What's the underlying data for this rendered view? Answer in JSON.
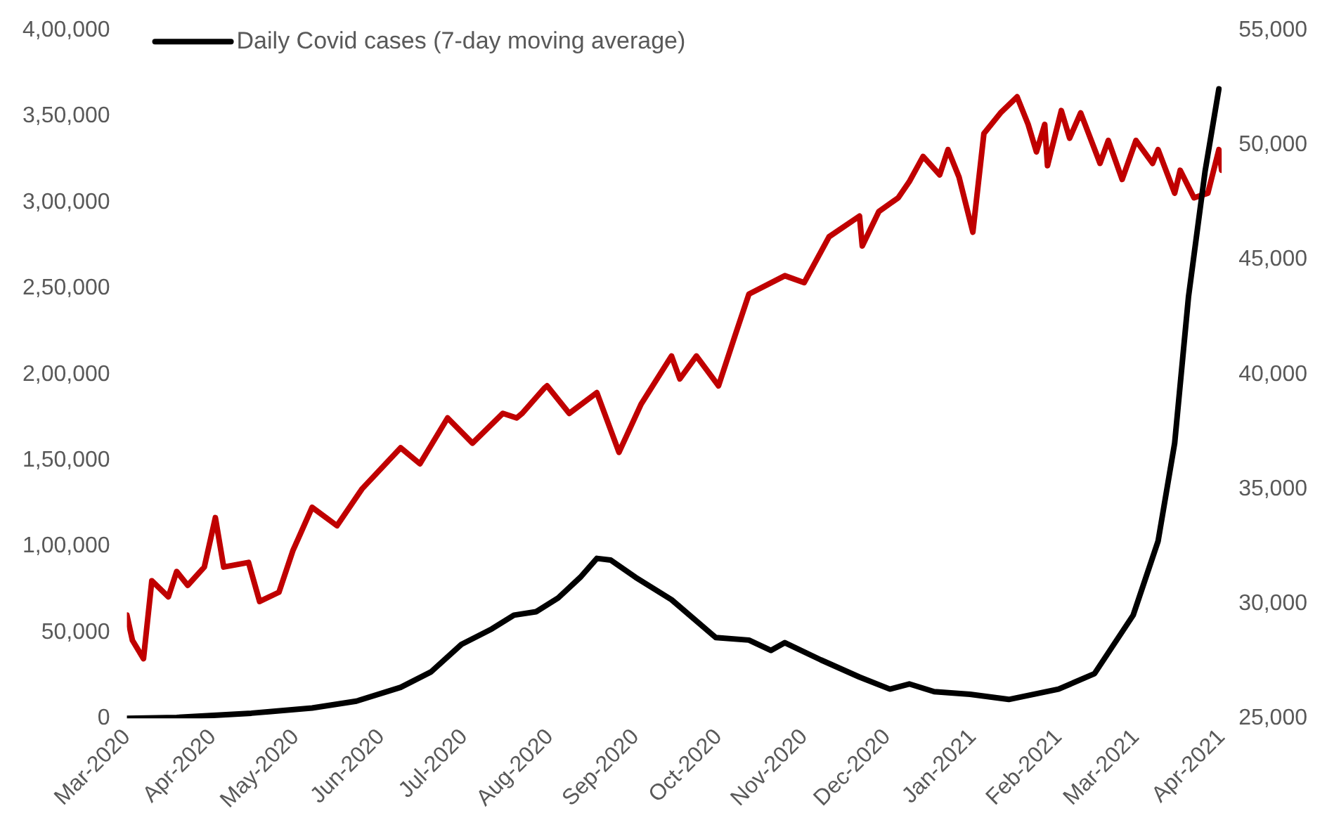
{
  "chart_data": {
    "type": "line",
    "legend": "top left",
    "grid": false,
    "marker": "none",
    "line_style": "solid",
    "xlim": [
      "2020-03-01",
      "2021-04-01"
    ],
    "xticks": [
      {
        "value": "2020-03-01",
        "label": "Mar-2020"
      },
      {
        "value": "2020-04-01",
        "label": "Apr-2020"
      },
      {
        "value": "2020-05-01",
        "label": "May-2020"
      },
      {
        "value": "2020-06-01",
        "label": "Jun-2020"
      },
      {
        "value": "2020-07-01",
        "label": "Jul-2020"
      },
      {
        "value": "2020-08-01",
        "label": "Aug-2020"
      },
      {
        "value": "2020-09-01",
        "label": "Sep-2020"
      },
      {
        "value": "2020-10-01",
        "label": "Oct-2020"
      },
      {
        "value": "2020-11-01",
        "label": "Nov-2020"
      },
      {
        "value": "2020-12-01",
        "label": "Dec-2020"
      },
      {
        "value": "2021-01-01",
        "label": "Jan-2021"
      },
      {
        "value": "2021-02-01",
        "label": "Feb-2021"
      },
      {
        "value": "2021-03-01",
        "label": "Mar-2021"
      },
      {
        "value": "2021-04-01",
        "label": "Apr-2021"
      }
    ],
    "ylim": [
      0,
      400000
    ],
    "yticks": [
      {
        "value": 0,
        "label": "0"
      },
      {
        "value": 50000,
        "label": "50,000"
      },
      {
        "value": 100000,
        "label": "1,00,000"
      },
      {
        "value": 150000,
        "label": "1,50,000"
      },
      {
        "value": 200000,
        "label": "2,00,000"
      },
      {
        "value": 250000,
        "label": "2,50,000"
      },
      {
        "value": 300000,
        "label": "3,00,000"
      },
      {
        "value": 350000,
        "label": "3,50,000"
      },
      {
        "value": 400000,
        "label": "4,00,000"
      }
    ],
    "y2lim": [
      25000,
      55000
    ],
    "y2ticks": [
      {
        "value": 25000,
        "label": "25,000"
      },
      {
        "value": 30000,
        "label": "30,000"
      },
      {
        "value": 35000,
        "label": "35,000"
      },
      {
        "value": 40000,
        "label": "40,000"
      },
      {
        "value": 45000,
        "label": "45,000"
      },
      {
        "value": 50000,
        "label": "50,000"
      },
      {
        "value": 55000,
        "label": "55,000"
      }
    ],
    "series": [
      {
        "name": "Daily Covid cases (7-day moving average)",
        "color": "#000000",
        "x": [
          "2020-03-01",
          "2020-03-19",
          "2020-04-15",
          "2020-05-07",
          "2020-05-23",
          "2020-06-08",
          "2020-06-19",
          "2020-06-30",
          "2020-07-11",
          "2020-07-19",
          "2020-07-27",
          "2020-08-04",
          "2020-08-12",
          "2020-08-18",
          "2020-08-23",
          "2020-09-01",
          "2020-09-14",
          "2020-09-30",
          "2020-10-12",
          "2020-10-20",
          "2020-10-25",
          "2020-11-07",
          "2020-11-21",
          "2020-12-02",
          "2020-12-09",
          "2020-12-18",
          "2020-12-31",
          "2021-01-14",
          "2021-02-01",
          "2021-02-14",
          "2021-02-28",
          "2021-03-09",
          "2021-03-15",
          "2021-03-20",
          "2021-03-26",
          "2021-03-31"
        ],
        "values": [
          0,
          500,
          3000,
          6000,
          10000,
          18000,
          27000,
          43000,
          52000,
          60000,
          62000,
          70000,
          82000,
          93000,
          92000,
          82000,
          69000,
          47000,
          45500,
          39500,
          44000,
          34000,
          24000,
          17000,
          20000,
          15500,
          14000,
          11000,
          17000,
          26000,
          60000,
          103000,
          160000,
          245000,
          318000,
          366000
        ]
      },
      {
        "color": "#c00000",
        "axis": "y2",
        "x": [
          "2020-03-01",
          "2020-03-03",
          "2020-03-07",
          "2020-03-10",
          "2020-03-16",
          "2020-03-19",
          "2020-03-23",
          "2020-03-29",
          "2020-04-02",
          "2020-04-05",
          "2020-04-14",
          "2020-04-18",
          "2020-04-25",
          "2020-04-30",
          "2020-05-07",
          "2020-05-16",
          "2020-05-25",
          "2020-06-08",
          "2020-06-15",
          "2020-06-25",
          "2020-07-04",
          "2020-07-15",
          "2020-07-20",
          "2020-07-22",
          "2020-07-30",
          "2020-07-31",
          "2020-08-08",
          "2020-08-18",
          "2020-08-26",
          "2020-09-03",
          "2020-09-14",
          "2020-09-17",
          "2020-09-23",
          "2020-10-01",
          "2020-10-07",
          "2020-10-12",
          "2020-10-25",
          "2020-11-01",
          "2020-11-10",
          "2020-11-21",
          "2020-11-22",
          "2020-11-28",
          "2020-12-05",
          "2020-12-09",
          "2020-12-14",
          "2020-12-20",
          "2020-12-23",
          "2020-12-27",
          "2021-01-01",
          "2021-01-05",
          "2021-01-11",
          "2021-01-17",
          "2021-01-21",
          "2021-01-24",
          "2021-01-27",
          "2021-01-28",
          "2021-02-02",
          "2021-02-05",
          "2021-02-09",
          "2021-02-16",
          "2021-02-19",
          "2021-02-24",
          "2021-03-01",
          "2021-03-07",
          "2021-03-09",
          "2021-03-15",
          "2021-03-17",
          "2021-03-22",
          "2021-03-27",
          "2021-03-31",
          "2021-04-01"
        ],
        "values": [
          29500,
          28400,
          27600,
          31000,
          30300,
          31400,
          30800,
          31600,
          33750,
          31600,
          31800,
          30100,
          30500,
          32300,
          34200,
          33400,
          35000,
          36800,
          36100,
          38100,
          37000,
          38300,
          38100,
          38300,
          39400,
          39500,
          38300,
          39200,
          36600,
          38700,
          40800,
          39800,
          40800,
          39500,
          41700,
          43500,
          44300,
          44000,
          46000,
          46900,
          45600,
          47100,
          47700,
          48400,
          49500,
          48700,
          49800,
          48600,
          46200,
          50500,
          51400,
          52100,
          50900,
          49700,
          50900,
          49100,
          51500,
          50300,
          51400,
          49200,
          50200,
          48500,
          50200,
          49200,
          49800,
          47900,
          48900,
          47700,
          47900,
          49800,
          48900
        ]
      }
    ]
  }
}
